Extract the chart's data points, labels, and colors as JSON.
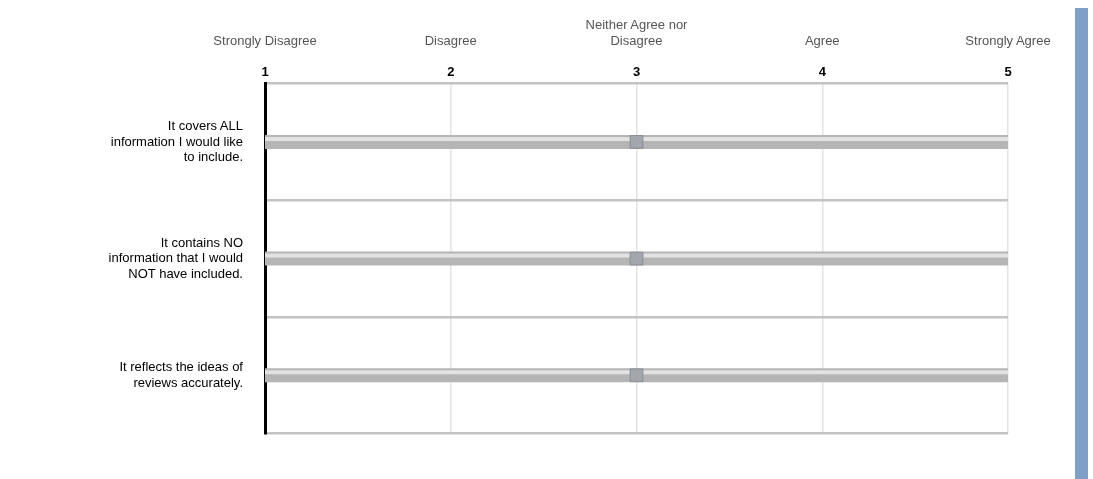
{
  "chart_data": {
    "type": "scatter",
    "orientation": "horizontal",
    "categories": [
      "It covers ALL information I would like to include.",
      "It contains NO information that I would NOT have included.",
      "It reflects the ideas of reviews accurately."
    ],
    "series": [
      {
        "color": "#a3a6ad",
        "values": [
          3,
          3,
          3
        ]
      }
    ],
    "xlim": [
      1,
      5
    ],
    "xticks": [
      1,
      2,
      3,
      4,
      5
    ],
    "annotations": [
      "Strongly Disagree",
      "Disagree",
      "Neither Agree nor Disagree",
      "Agree",
      "Strongly Agree"
    ],
    "marker": "square",
    "grid": true,
    "legend": false
  }
}
